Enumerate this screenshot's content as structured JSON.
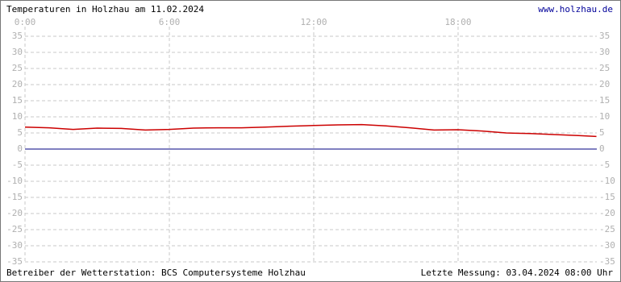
{
  "chart_data": {
    "type": "line",
    "title": "Temperaturen in Holzhau am 11.02.2024",
    "link": "www.holzhau.de",
    "footer_left": "Betreiber der Wetterstation: BCS Computersysteme Holzhau",
    "footer_right": "Letzte Messung: 03.04.2024 08:00 Uhr",
    "x": [
      0,
      1,
      2,
      3,
      4,
      5,
      6,
      7,
      8,
      9,
      10,
      11,
      12,
      13,
      14,
      15,
      16,
      17,
      18,
      19,
      20,
      21,
      22,
      23,
      23.75
    ],
    "series": [
      {
        "color": "#cc0000",
        "values": [
          6.8,
          6.6,
          6.1,
          6.5,
          6.4,
          5.9,
          6.1,
          6.5,
          6.6,
          6.6,
          6.8,
          7.1,
          7.3,
          7.5,
          7.6,
          7.2,
          6.6,
          5.9,
          6.0,
          5.6,
          5.0,
          4.8,
          4.5,
          4.2,
          3.9
        ]
      }
    ],
    "zero_line_color": "#000080",
    "xlim": [
      0,
      24
    ],
    "xticks": [
      {
        "value": 0,
        "label": "0:00"
      },
      {
        "value": 6,
        "label": "6:00"
      },
      {
        "value": 12,
        "label": "12:00"
      },
      {
        "value": 18,
        "label": "18:00"
      }
    ],
    "ylim": [
      -35,
      35
    ],
    "yticks": [
      35,
      30,
      25,
      20,
      15,
      10,
      5,
      0,
      -5,
      -10,
      -15,
      -20,
      -25,
      -30,
      -35
    ],
    "grid": true
  }
}
